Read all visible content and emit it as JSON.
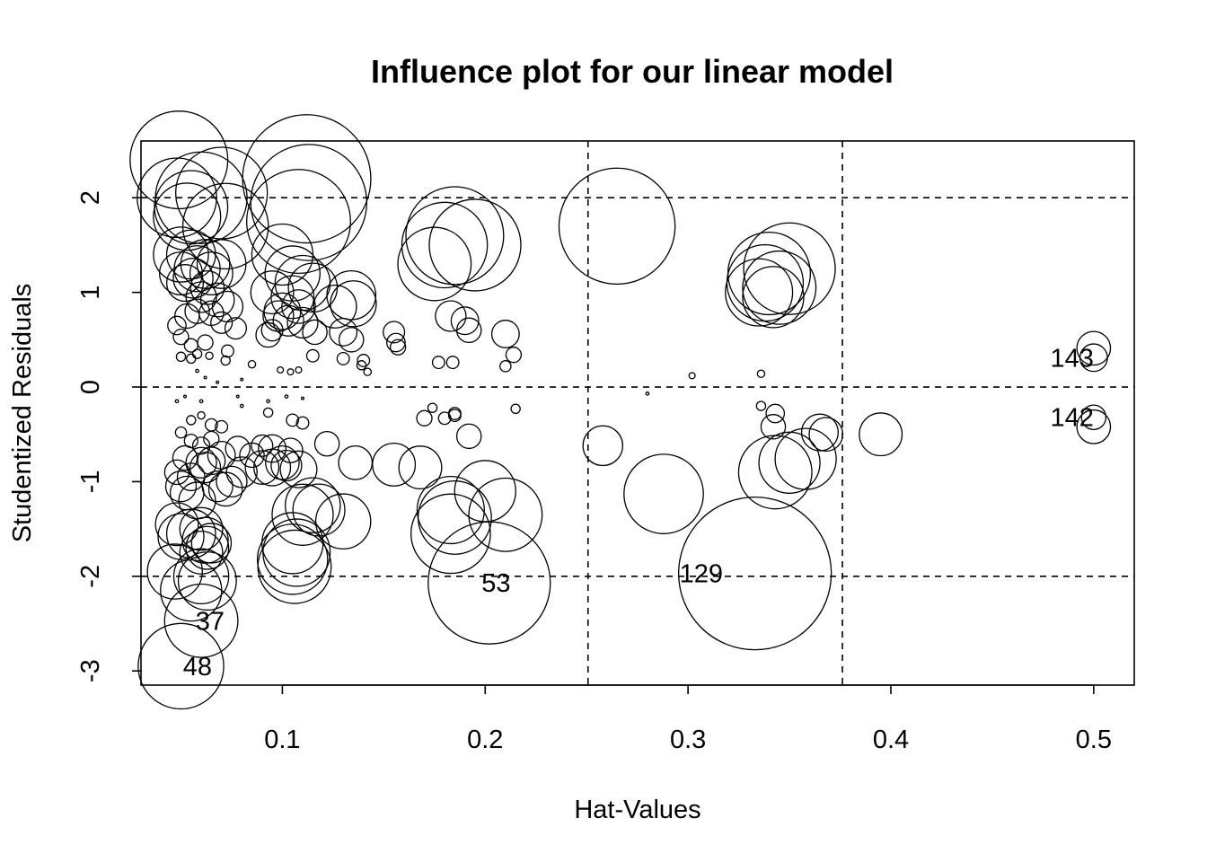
{
  "chart_data": {
    "type": "scatter",
    "title": "Influence plot for our linear model",
    "xlabel": "Hat-Values",
    "ylabel": "Studentized Residuals",
    "xlim": [
      0.0303,
      0.52
    ],
    "ylim": [
      -3.15,
      2.6
    ],
    "x_ticks": [
      0.1,
      0.2,
      0.3,
      0.4,
      0.5
    ],
    "x_tick_labels": [
      "0.1",
      "0.2",
      "0.3",
      "0.4",
      "0.5"
    ],
    "y_ticks": [
      -3,
      -2,
      -1,
      0,
      1,
      2
    ],
    "y_tick_labels": [
      "-3",
      "-2",
      "-1",
      "0",
      "1",
      "2"
    ],
    "reference_lines": {
      "horizontal": [
        -2,
        0,
        2
      ],
      "vertical": [
        0.2507,
        0.3761
      ]
    },
    "grid": false,
    "legend": "none",
    "bubble_size": "Cook's distance",
    "points": [
      {
        "x": 0.049,
        "y": 2.4,
        "s": 1.6
      },
      {
        "x": 0.048,
        "y": 2.0,
        "s": 1.3
      },
      {
        "x": 0.055,
        "y": 1.9,
        "s": 1.2
      },
      {
        "x": 0.06,
        "y": 2.0,
        "s": 1.5
      },
      {
        "x": 0.053,
        "y": 1.8,
        "s": 1.1
      },
      {
        "x": 0.07,
        "y": 2.05,
        "s": 1.5
      },
      {
        "x": 0.072,
        "y": 1.7,
        "s": 1.4
      },
      {
        "x": 0.112,
        "y": 2.2,
        "s": 2.1
      },
      {
        "x": 0.113,
        "y": 1.95,
        "s": 1.9
      },
      {
        "x": 0.108,
        "y": 1.75,
        "s": 1.7
      },
      {
        "x": 0.05,
        "y": 1.4,
        "s": 0.9
      },
      {
        "x": 0.05,
        "y": 1.2,
        "s": 0.7
      },
      {
        "x": 0.055,
        "y": 1.4,
        "s": 0.8
      },
      {
        "x": 0.058,
        "y": 1.25,
        "s": 0.75
      },
      {
        "x": 0.062,
        "y": 1.3,
        "s": 0.8
      },
      {
        "x": 0.065,
        "y": 1.2,
        "s": 0.7
      },
      {
        "x": 0.07,
        "y": 1.3,
        "s": 0.8
      },
      {
        "x": 0.052,
        "y": 1.1,
        "s": 0.6
      },
      {
        "x": 0.056,
        "y": 1.15,
        "s": 0.65
      },
      {
        "x": 0.063,
        "y": 1.05,
        "s": 0.55
      },
      {
        "x": 0.06,
        "y": 0.95,
        "s": 0.5
      },
      {
        "x": 0.068,
        "y": 0.92,
        "s": 0.55
      },
      {
        "x": 0.073,
        "y": 0.85,
        "s": 0.5
      },
      {
        "x": 0.058,
        "y": 0.8,
        "s": 0.4
      },
      {
        "x": 0.053,
        "y": 0.75,
        "s": 0.4
      },
      {
        "x": 0.065,
        "y": 0.78,
        "s": 0.4
      },
      {
        "x": 0.048,
        "y": 0.65,
        "s": 0.3
      },
      {
        "x": 0.07,
        "y": 0.68,
        "s": 0.35
      },
      {
        "x": 0.077,
        "y": 0.62,
        "s": 0.35
      },
      {
        "x": 0.05,
        "y": 0.53,
        "s": 0.25
      },
      {
        "x": 0.062,
        "y": 0.47,
        "s": 0.25
      },
      {
        "x": 0.055,
        "y": 0.44,
        "s": 0.22
      },
      {
        "x": 0.073,
        "y": 0.38,
        "s": 0.2
      },
      {
        "x": 0.05,
        "y": 0.32,
        "s": 0.15
      },
      {
        "x": 0.055,
        "y": 0.3,
        "s": 0.15
      },
      {
        "x": 0.072,
        "y": 0.28,
        "s": 0.15
      },
      {
        "x": 0.058,
        "y": 0.35,
        "s": 0.15
      },
      {
        "x": 0.064,
        "y": 0.33,
        "s": 0.12
      },
      {
        "x": 0.1,
        "y": 1.4,
        "s": 1.0
      },
      {
        "x": 0.105,
        "y": 1.2,
        "s": 0.9
      },
      {
        "x": 0.11,
        "y": 1.1,
        "s": 0.9
      },
      {
        "x": 0.115,
        "y": 1.05,
        "s": 0.8
      },
      {
        "x": 0.095,
        "y": 1.0,
        "s": 0.7
      },
      {
        "x": 0.105,
        "y": 0.95,
        "s": 0.7
      },
      {
        "x": 0.1,
        "y": 0.8,
        "s": 0.6
      },
      {
        "x": 0.108,
        "y": 0.85,
        "s": 0.55
      },
      {
        "x": 0.098,
        "y": 0.75,
        "s": 0.5
      },
      {
        "x": 0.103,
        "y": 0.7,
        "s": 0.5
      },
      {
        "x": 0.11,
        "y": 0.68,
        "s": 0.5
      },
      {
        "x": 0.126,
        "y": 0.85,
        "s": 0.7
      },
      {
        "x": 0.134,
        "y": 0.97,
        "s": 0.8
      },
      {
        "x": 0.135,
        "y": 0.88,
        "s": 0.75
      },
      {
        "x": 0.116,
        "y": 0.58,
        "s": 0.4
      },
      {
        "x": 0.13,
        "y": 0.58,
        "s": 0.45
      },
      {
        "x": 0.134,
        "y": 0.5,
        "s": 0.4
      },
      {
        "x": 0.093,
        "y": 0.55,
        "s": 0.4
      },
      {
        "x": 0.095,
        "y": 0.6,
        "s": 0.35
      },
      {
        "x": 0.115,
        "y": 0.33,
        "s": 0.2
      },
      {
        "x": 0.13,
        "y": 0.3,
        "s": 0.2
      },
      {
        "x": 0.14,
        "y": 0.28,
        "s": 0.2
      },
      {
        "x": 0.139,
        "y": 0.23,
        "s": 0.15
      },
      {
        "x": 0.142,
        "y": 0.16,
        "s": 0.12
      },
      {
        "x": 0.085,
        "y": 0.24,
        "s": 0.12
      },
      {
        "x": 0.099,
        "y": 0.18,
        "s": 0.1
      },
      {
        "x": 0.104,
        "y": 0.16,
        "s": 0.1
      },
      {
        "x": 0.108,
        "y": 0.18,
        "s": 0.1
      },
      {
        "x": 0.18,
        "y": 1.5,
        "s": 1.4
      },
      {
        "x": 0.185,
        "y": 1.6,
        "s": 1.6
      },
      {
        "x": 0.175,
        "y": 1.3,
        "s": 1.2
      },
      {
        "x": 0.195,
        "y": 1.5,
        "s": 1.5
      },
      {
        "x": 0.183,
        "y": 0.75,
        "s": 0.5
      },
      {
        "x": 0.19,
        "y": 0.7,
        "s": 0.45
      },
      {
        "x": 0.192,
        "y": 0.6,
        "s": 0.4
      },
      {
        "x": 0.155,
        "y": 0.58,
        "s": 0.35
      },
      {
        "x": 0.156,
        "y": 0.47,
        "s": 0.3
      },
      {
        "x": 0.157,
        "y": 0.42,
        "s": 0.25
      },
      {
        "x": 0.177,
        "y": 0.26,
        "s": 0.2
      },
      {
        "x": 0.184,
        "y": 0.26,
        "s": 0.2
      },
      {
        "x": 0.21,
        "y": 0.56,
        "s": 0.45
      },
      {
        "x": 0.214,
        "y": 0.34,
        "s": 0.25
      },
      {
        "x": 0.21,
        "y": 0.22,
        "s": 0.18
      },
      {
        "x": 0.265,
        "y": 1.7,
        "s": 1.9
      },
      {
        "x": 0.335,
        "y": 1.0,
        "s": 1.1
      },
      {
        "x": 0.338,
        "y": 1.1,
        "s": 1.25
      },
      {
        "x": 0.34,
        "y": 1.2,
        "s": 1.35
      },
      {
        "x": 0.35,
        "y": 1.25,
        "s": 1.5
      },
      {
        "x": 0.345,
        "y": 1.05,
        "s": 1.2
      },
      {
        "x": 0.342,
        "y": 0.95,
        "s": 1.0
      },
      {
        "x": 0.5,
        "y": 0.41,
        "s": 0.55
      },
      {
        "x": 0.5,
        "y": 0.31,
        "s": 0.45
      },
      {
        "x": 0.302,
        "y": 0.12,
        "s": 0.1
      },
      {
        "x": 0.336,
        "y": 0.14,
        "s": 0.12
      },
      {
        "x": 0.058,
        "y": 0.17,
        "s": 0.05
      },
      {
        "x": 0.062,
        "y": 0.1,
        "s": 0.04
      },
      {
        "x": 0.068,
        "y": 0.05,
        "s": 0.04
      },
      {
        "x": 0.08,
        "y": 0.08,
        "s": 0.04
      },
      {
        "x": 0.048,
        "y": -0.15,
        "s": 0.05
      },
      {
        "x": 0.052,
        "y": -0.1,
        "s": 0.04
      },
      {
        "x": 0.06,
        "y": -0.15,
        "s": 0.05
      },
      {
        "x": 0.078,
        "y": -0.1,
        "s": 0.04
      },
      {
        "x": 0.08,
        "y": -0.2,
        "s": 0.05
      },
      {
        "x": 0.093,
        "y": -0.15,
        "s": 0.05
      },
      {
        "x": 0.102,
        "y": -0.1,
        "s": 0.05
      },
      {
        "x": 0.11,
        "y": -0.12,
        "s": 0.04
      },
      {
        "x": 0.28,
        "y": -0.07,
        "s": 0.05
      },
      {
        "x": 0.055,
        "y": -0.35,
        "s": 0.15
      },
      {
        "x": 0.06,
        "y": -0.3,
        "s": 0.12
      },
      {
        "x": 0.065,
        "y": -0.4,
        "s": 0.2
      },
      {
        "x": 0.07,
        "y": -0.42,
        "s": 0.2
      },
      {
        "x": 0.093,
        "y": -0.27,
        "s": 0.15
      },
      {
        "x": 0.105,
        "y": -0.35,
        "s": 0.2
      },
      {
        "x": 0.11,
        "y": -0.38,
        "s": 0.2
      },
      {
        "x": 0.05,
        "y": -0.48,
        "s": 0.18
      },
      {
        "x": 0.055,
        "y": -0.57,
        "s": 0.22
      },
      {
        "x": 0.06,
        "y": -0.62,
        "s": 0.28
      },
      {
        "x": 0.065,
        "y": -0.55,
        "s": 0.25
      },
      {
        "x": 0.052,
        "y": -0.75,
        "s": 0.4
      },
      {
        "x": 0.06,
        "y": -0.8,
        "s": 0.5
      },
      {
        "x": 0.065,
        "y": -0.78,
        "s": 0.45
      },
      {
        "x": 0.07,
        "y": -0.72,
        "s": 0.45
      },
      {
        "x": 0.078,
        "y": -0.65,
        "s": 0.4
      },
      {
        "x": 0.048,
        "y": -0.9,
        "s": 0.4
      },
      {
        "x": 0.055,
        "y": -0.95,
        "s": 0.45
      },
      {
        "x": 0.062,
        "y": -0.85,
        "s": 0.5
      },
      {
        "x": 0.05,
        "y": -1.05,
        "s": 0.5
      },
      {
        "x": 0.053,
        "y": -1.12,
        "s": 0.55
      },
      {
        "x": 0.058,
        "y": -1.2,
        "s": 0.6
      },
      {
        "x": 0.068,
        "y": -1.05,
        "s": 0.5
      },
      {
        "x": 0.072,
        "y": -1.08,
        "s": 0.55
      },
      {
        "x": 0.075,
        "y": -1.0,
        "s": 0.5
      },
      {
        "x": 0.08,
        "y": -0.9,
        "s": 0.5
      },
      {
        "x": 0.09,
        "y": -0.85,
        "s": 0.55
      },
      {
        "x": 0.095,
        "y": -0.65,
        "s": 0.45
      },
      {
        "x": 0.095,
        "y": -0.85,
        "s": 0.6
      },
      {
        "x": 0.1,
        "y": -0.8,
        "s": 0.55
      },
      {
        "x": 0.104,
        "y": -0.67,
        "s": 0.4
      },
      {
        "x": 0.102,
        "y": -0.83,
        "s": 0.5
      },
      {
        "x": 0.108,
        "y": -0.87,
        "s": 0.6
      },
      {
        "x": 0.122,
        "y": -0.6,
        "s": 0.4
      },
      {
        "x": 0.085,
        "y": -0.72,
        "s": 0.4
      },
      {
        "x": 0.09,
        "y": -0.62,
        "s": 0.35
      },
      {
        "x": 0.11,
        "y": -1.35,
        "s": 1.0
      },
      {
        "x": 0.115,
        "y": -1.25,
        "s": 0.9
      },
      {
        "x": 0.118,
        "y": -1.3,
        "s": 0.85
      },
      {
        "x": 0.13,
        "y": -1.42,
        "s": 0.9
      },
      {
        "x": 0.105,
        "y": -1.65,
        "s": 1.0
      },
      {
        "x": 0.107,
        "y": -1.75,
        "s": 1.1
      },
      {
        "x": 0.105,
        "y": -1.82,
        "s": 1.15
      },
      {
        "x": 0.106,
        "y": -1.9,
        "s": 1.2
      },
      {
        "x": 0.048,
        "y": -1.45,
        "s": 0.7
      },
      {
        "x": 0.05,
        "y": -1.58,
        "s": 0.75
      },
      {
        "x": 0.055,
        "y": -1.55,
        "s": 0.8
      },
      {
        "x": 0.06,
        "y": -1.5,
        "s": 0.7
      },
      {
        "x": 0.062,
        "y": -1.62,
        "s": 0.75
      },
      {
        "x": 0.063,
        "y": -1.7,
        "s": 0.7
      },
      {
        "x": 0.065,
        "y": -1.65,
        "s": 0.65
      },
      {
        "x": 0.06,
        "y": -1.75,
        "s": 0.7
      },
      {
        "x": 0.047,
        "y": -1.95,
        "s": 0.9
      },
      {
        "x": 0.055,
        "y": -2.15,
        "s": 1.0
      },
      {
        "x": 0.06,
        "y": -2.0,
        "s": 0.9
      },
      {
        "x": 0.063,
        "y": -2.05,
        "s": 0.95
      },
      {
        "x": 0.06,
        "y": -2.47,
        "s": 1.2
      },
      {
        "x": 0.05,
        "y": -2.95,
        "s": 1.4
      },
      {
        "x": 0.136,
        "y": -0.8,
        "s": 0.55
      },
      {
        "x": 0.155,
        "y": -0.82,
        "s": 0.7
      },
      {
        "x": 0.168,
        "y": -0.85,
        "s": 0.7
      },
      {
        "x": 0.17,
        "y": -0.33,
        "s": 0.25
      },
      {
        "x": 0.174,
        "y": -0.22,
        "s": 0.15
      },
      {
        "x": 0.18,
        "y": -0.33,
        "s": 0.2
      },
      {
        "x": 0.185,
        "y": -0.28,
        "s": 0.2
      },
      {
        "x": 0.185,
        "y": -0.3,
        "s": 0.2
      },
      {
        "x": 0.192,
        "y": -0.52,
        "s": 0.4
      },
      {
        "x": 0.215,
        "y": -0.23,
        "s": 0.15
      },
      {
        "x": 0.183,
        "y": -1.3,
        "s": 1.1
      },
      {
        "x": 0.185,
        "y": -1.38,
        "s": 1.2
      },
      {
        "x": 0.183,
        "y": -1.55,
        "s": 1.3
      },
      {
        "x": 0.2,
        "y": -1.1,
        "s": 1.0
      },
      {
        "x": 0.21,
        "y": -1.35,
        "s": 1.2
      },
      {
        "x": 0.202,
        "y": -2.07,
        "s": 2.0
      },
      {
        "x": 0.258,
        "y": -0.62,
        "s": 0.65
      },
      {
        "x": 0.288,
        "y": -1.13,
        "s": 1.3
      },
      {
        "x": 0.333,
        "y": -1.97,
        "s": 2.5
      },
      {
        "x": 0.336,
        "y": -0.2,
        "s": 0.15
      },
      {
        "x": 0.343,
        "y": -0.28,
        "s": 0.3
      },
      {
        "x": 0.342,
        "y": -0.42,
        "s": 0.4
      },
      {
        "x": 0.343,
        "y": -0.9,
        "s": 1.2
      },
      {
        "x": 0.35,
        "y": -0.8,
        "s": 1.0
      },
      {
        "x": 0.358,
        "y": -0.76,
        "s": 1.0
      },
      {
        "x": 0.365,
        "y": -0.48,
        "s": 0.6
      },
      {
        "x": 0.368,
        "y": -0.5,
        "s": 0.55
      },
      {
        "x": 0.395,
        "y": -0.5,
        "s": 0.7
      },
      {
        "x": 0.5,
        "y": -0.32,
        "s": 0.4
      },
      {
        "x": 0.5,
        "y": -0.42,
        "s": 0.55
      }
    ],
    "annotations": [
      {
        "label": "143",
        "x": 0.5,
        "y": 0.31
      },
      {
        "label": "142",
        "x": 0.5,
        "y": -0.32
      },
      {
        "label": "129",
        "x": 0.3172,
        "y": -1.97
      },
      {
        "label": "53",
        "x": 0.2125,
        "y": -2.07
      },
      {
        "label": "37",
        "x": 0.0715,
        "y": -2.47
      },
      {
        "label": "48",
        "x": 0.0653,
        "y": -2.95
      }
    ]
  }
}
